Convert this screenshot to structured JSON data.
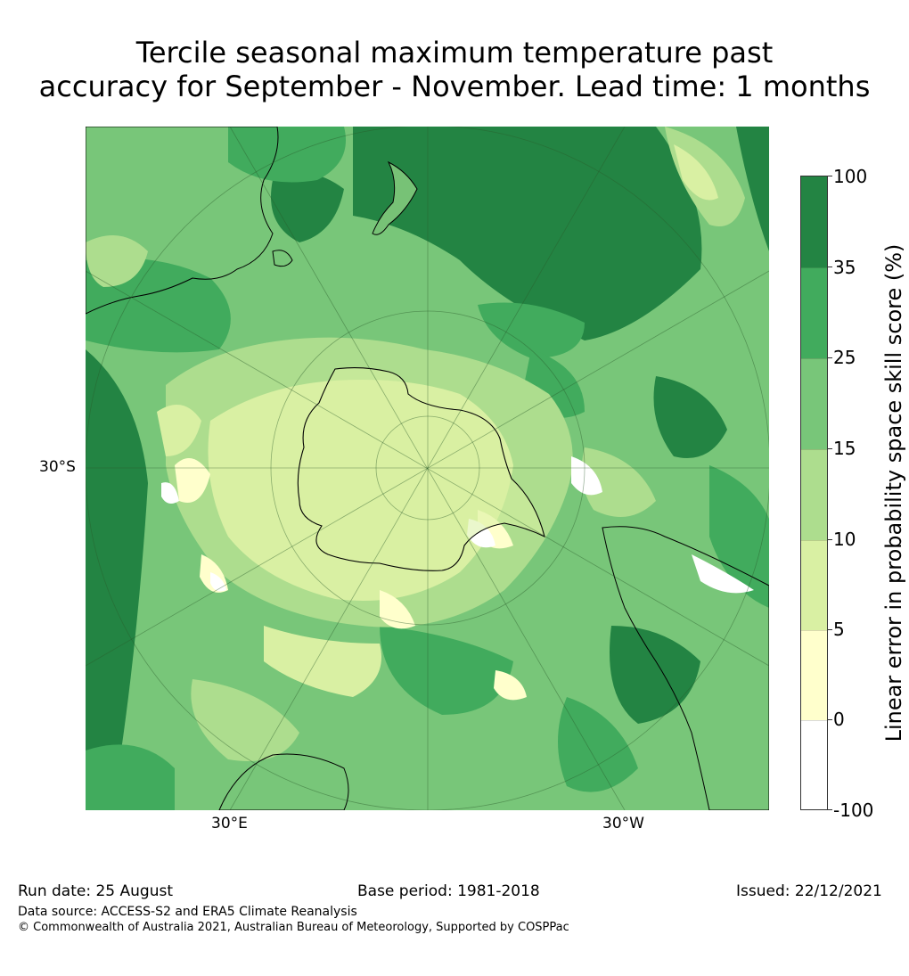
{
  "title": {
    "line1": "Tercile seasonal maximum temperature past",
    "line2": "accuracy for September - November. Lead time: 1 months"
  },
  "map": {
    "lat_label": "30°S",
    "lon_label_left": "30°E",
    "lon_label_right": "30°W",
    "projection": "south-polar stereographic",
    "regions": [
      "Antarctica",
      "Australia",
      "New Zealand",
      "South America",
      "Africa"
    ]
  },
  "colorbar": {
    "title": "Linear error in probability space skill score (%)",
    "ticks": [
      "100",
      "35",
      "25",
      "15",
      "10",
      "5",
      "0",
      "-100"
    ],
    "colors": [
      "#238443",
      "#41ab5d",
      "#78c679",
      "#addd8e",
      "#d9f0a3",
      "#ffffcc",
      "#ffffff"
    ]
  },
  "footer": {
    "run_date": "Run date: 25 August",
    "base_period": "Base period: 1981-2018",
    "issued": "Issued: 22/12/2021",
    "data_source": "Data source: ACCESS-S2 and ERA5 Climate Reanalysis",
    "copyright": "© Commonwealth of Australia 2021, Australian Bureau of Meteorology, Supported by COSPPac"
  }
}
